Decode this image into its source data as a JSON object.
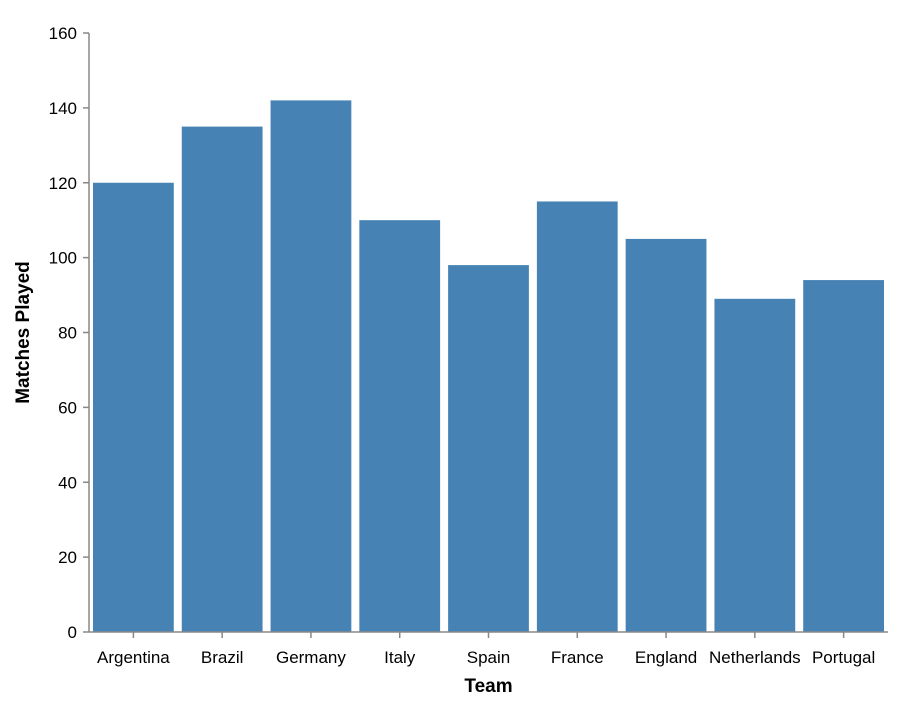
{
  "chart_data": {
    "type": "bar",
    "categories": [
      "Argentina",
      "Brazil",
      "Germany",
      "Italy",
      "Spain",
      "France",
      "England",
      "Netherlands",
      "Portugal"
    ],
    "values": [
      120,
      135,
      142,
      110,
      98,
      115,
      105,
      89,
      94
    ],
    "xlabel": "Team",
    "ylabel": "Matches Played",
    "ylim": [
      0,
      160
    ],
    "yticks": [
      0,
      20,
      40,
      60,
      80,
      100,
      120,
      140,
      160
    ],
    "grid": false,
    "legend": "none",
    "colors": {
      "bar": "#4682b4",
      "axis": "#888888",
      "text": "#000000"
    }
  }
}
